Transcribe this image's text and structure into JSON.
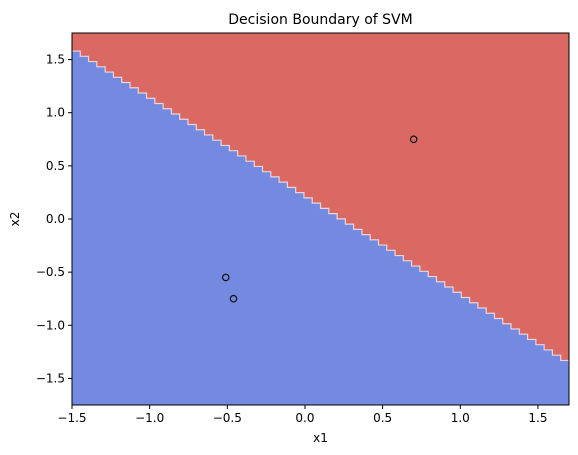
{
  "chart_data": {
    "type": "scatter",
    "title": "Decision Boundary of SVM",
    "xlabel": "x1",
    "ylabel": "x2",
    "xlim": [
      -1.5,
      1.7
    ],
    "ylim": [
      -1.75,
      1.75
    ],
    "x_ticks": [
      -1.5,
      -1.0,
      -0.5,
      0.0,
      0.5,
      1.0,
      1.5
    ],
    "x_tick_labels": [
      "−1.5",
      "−1.0",
      "−0.5",
      "0.0",
      "0.5",
      "1.0",
      "1.5"
    ],
    "y_ticks": [
      -1.5,
      -1.0,
      -0.5,
      0.0,
      0.5,
      1.0,
      1.5
    ],
    "y_tick_labels": [
      "−1.5",
      "−1.0",
      "−0.5",
      "0.0",
      "0.5",
      "1.0",
      "1.5"
    ],
    "grid": false,
    "decision_boundary": {
      "points": [
        [
          -1.5,
          1.58
        ],
        [
          1.7,
          -1.38
        ]
      ],
      "region_below_color": "#7489e0",
      "region_above_color": "#d96962",
      "boundary_color": "#e8d6dc"
    },
    "series": [
      {
        "color": "#d96962",
        "points": [
          [
            0.7,
            0.75
          ]
        ]
      },
      {
        "color": "#7489e0",
        "points": [
          [
            -0.51,
            -0.55
          ],
          [
            -0.46,
            -0.75
          ]
        ]
      }
    ],
    "marker_edge_color": "#111111"
  }
}
